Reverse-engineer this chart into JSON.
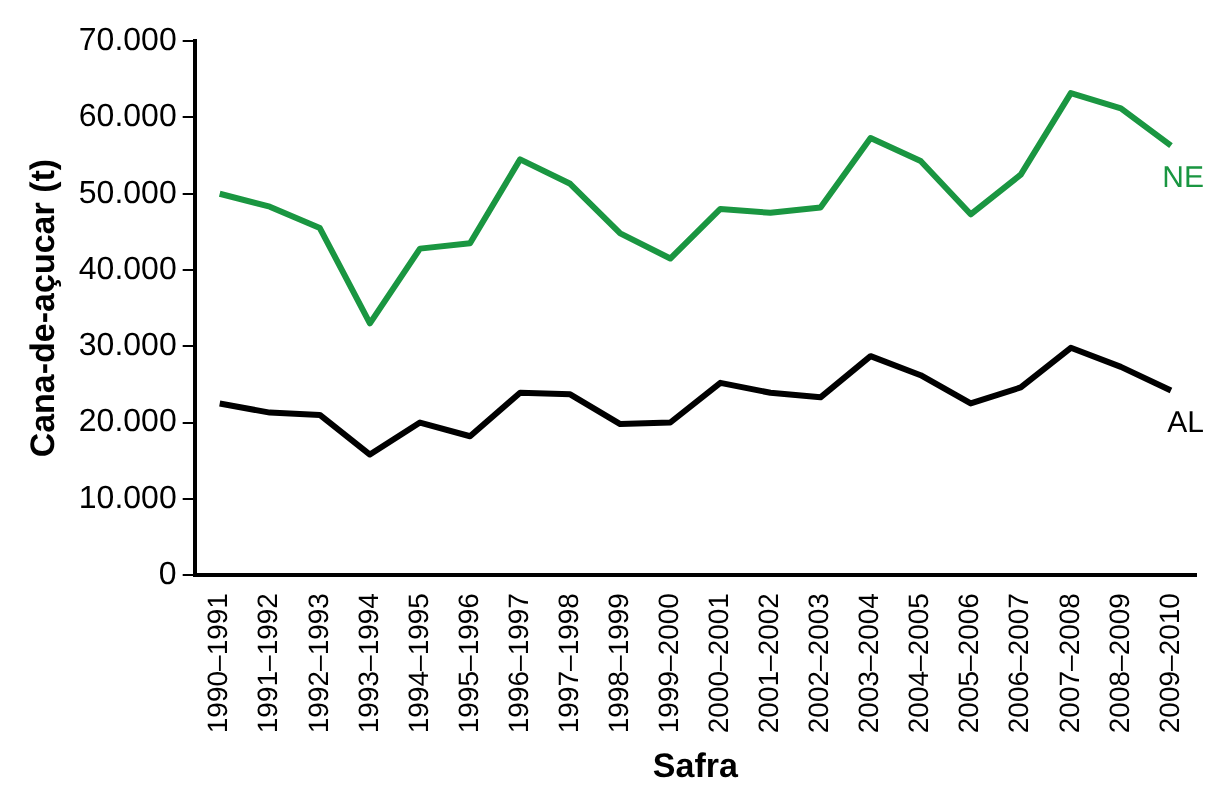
{
  "chart_data": {
    "type": "line",
    "xlabel": "Safra",
    "ylabel": "Cana-de-açucar (t)",
    "categories": [
      "1990–1991",
      "1991–1992",
      "1992–1993",
      "1993–1994",
      "1994–1995",
      "1995–1996",
      "1996–1997",
      "1997–1998",
      "1998–1999",
      "1999–2000",
      "2000–2001",
      "2001–2002",
      "2002–2003",
      "2003–2004",
      "2004–2005",
      "2005–2006",
      "2006–2007",
      "2007–2008",
      "2008–2009",
      "2009–2010"
    ],
    "series": [
      {
        "name": "NE",
        "color": "#1a9641",
        "values": [
          50000,
          48300,
          45500,
          33000,
          42800,
          43500,
          54500,
          51300,
          44800,
          41500,
          48000,
          47500,
          48200,
          57300,
          54300,
          47300,
          52500,
          63200,
          61200,
          56300
        ]
      },
      {
        "name": "AL",
        "color": "#000000",
        "values": [
          22500,
          21300,
          21000,
          15800,
          20000,
          18200,
          23900,
          23700,
          19800,
          20000,
          25200,
          23900,
          23300,
          28700,
          26200,
          22500,
          24600,
          29800,
          27300,
          24200
        ]
      }
    ],
    "ylim": [
      0,
      70000
    ],
    "yticks": [
      0,
      {
        "value": 10000,
        "label": "10.000"
      },
      {
        "value": 20000,
        "label": "20.000"
      },
      {
        "value": 30000,
        "label": "30.000"
      },
      {
        "value": 40000,
        "label": "40.000"
      },
      {
        "value": 50000,
        "label": "50.000"
      },
      {
        "value": 60000,
        "label": "60.000"
      },
      {
        "value": 70000,
        "label": "70.000"
      }
    ],
    "grid": false,
    "legend": false,
    "marker": "none",
    "line_style": "solid"
  }
}
